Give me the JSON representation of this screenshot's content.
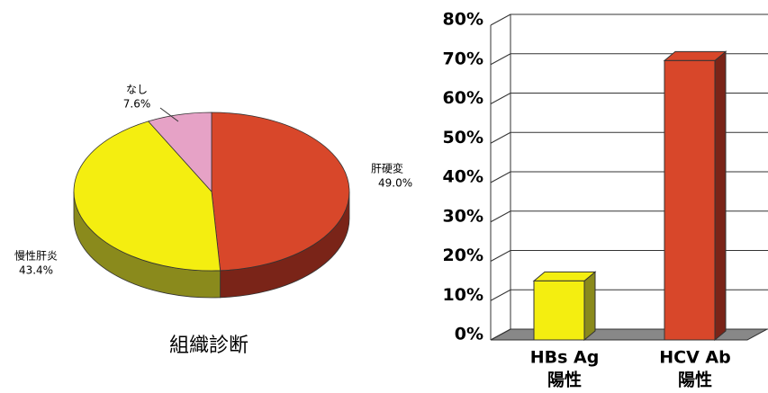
{
  "chart_data": [
    {
      "type": "pie",
      "title": "組織診断",
      "categories": [
        "肝硬変",
        "慢性肝炎",
        "なし"
      ],
      "values": [
        49.0,
        43.4,
        7.6
      ],
      "value_labels": [
        "49.0%",
        "43.4%",
        "7.6%"
      ],
      "colors": [
        "#d8472a",
        "#f4ee10",
        "#e6a2c6"
      ],
      "side_colors": [
        "#7a2418",
        "#8a8a1c",
        "#9a5a80"
      ]
    },
    {
      "type": "bar",
      "categories": [
        [
          "HBs Ag",
          "陽性"
        ],
        [
          "HCV Ab",
          "陽性"
        ]
      ],
      "values": [
        15,
        71
      ],
      "colors": [
        "#f4ee10",
        "#d8472a"
      ],
      "side_colors": [
        "#8a8a1c",
        "#7a2418"
      ],
      "ylim": [
        0,
        80
      ],
      "yticks": [
        {
          "value": 0,
          "label": "0%"
        },
        {
          "value": 10,
          "label": "10%"
        },
        {
          "value": 20,
          "label": "20%"
        },
        {
          "value": 30,
          "label": "30%"
        },
        {
          "value": 40,
          "label": "40%"
        },
        {
          "value": 50,
          "label": "50%"
        },
        {
          "value": 60,
          "label": "60%"
        },
        {
          "value": 70,
          "label": "70%"
        },
        {
          "value": 80,
          "label": "80%"
        }
      ],
      "grid": true
    }
  ]
}
